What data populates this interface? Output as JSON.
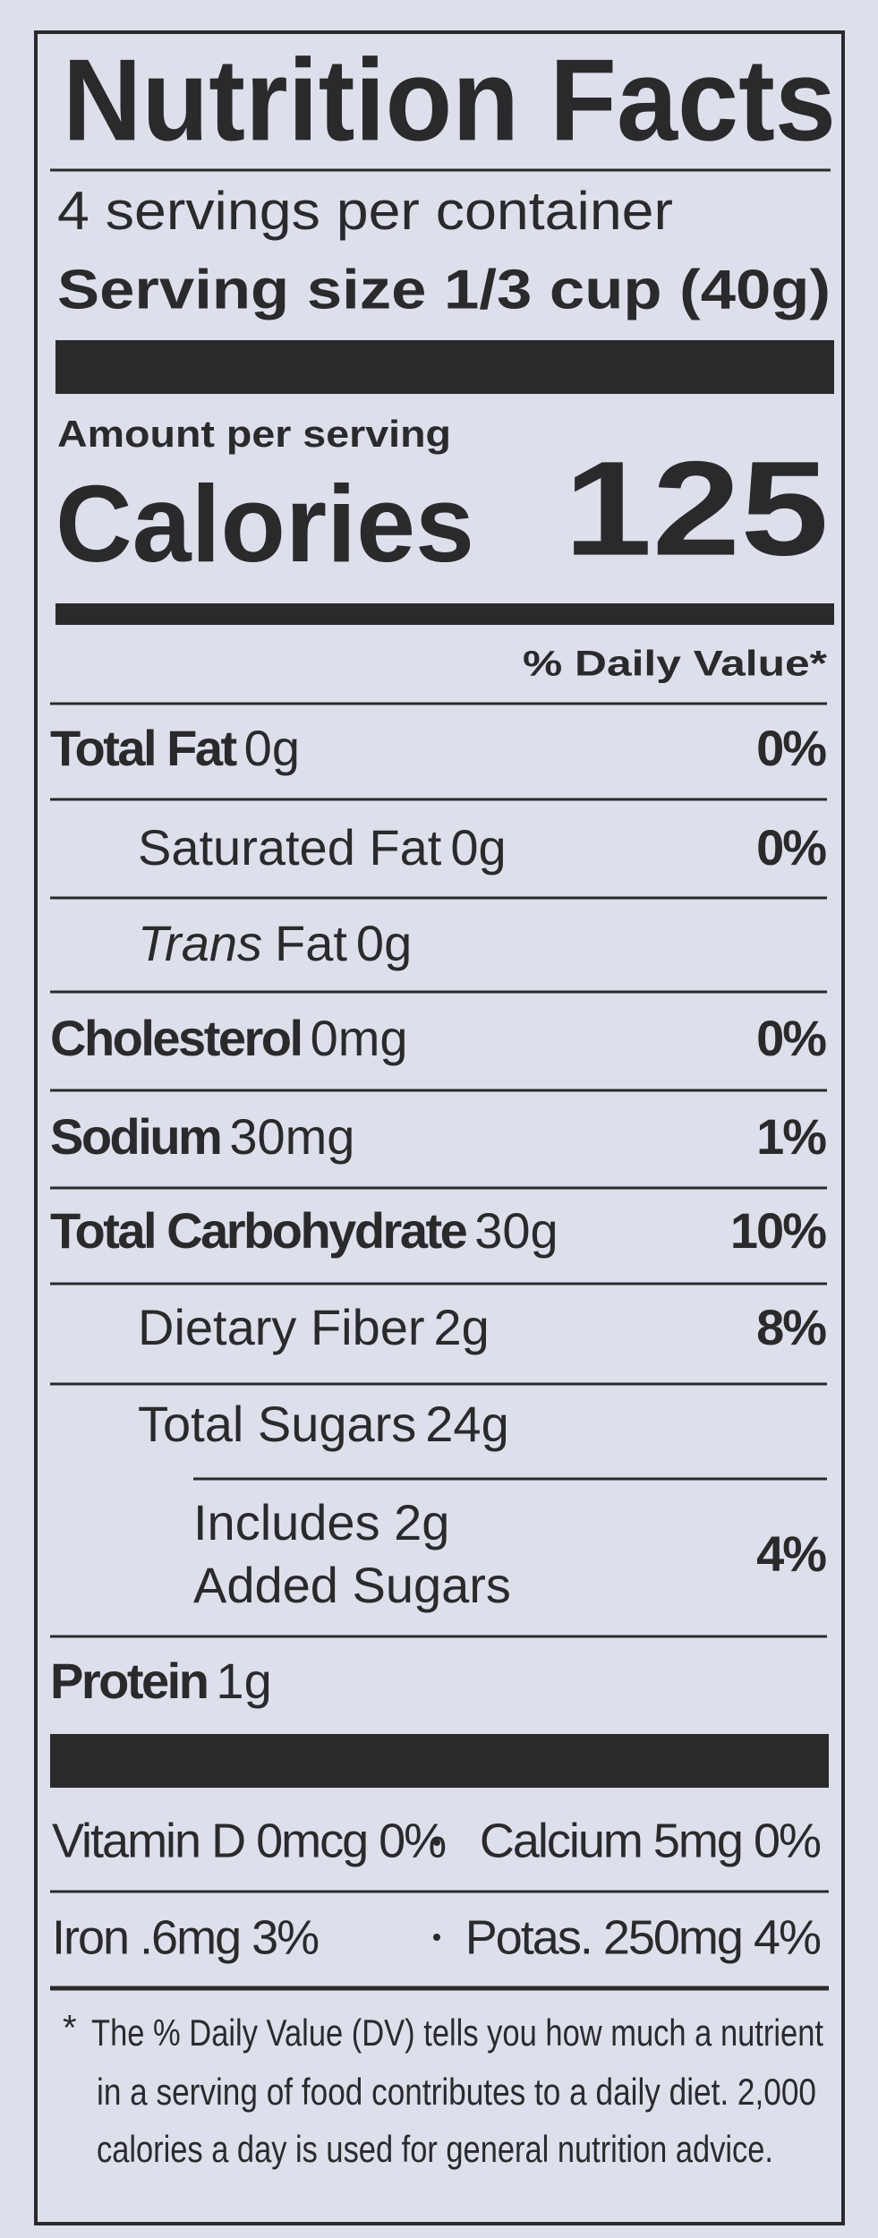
{
  "header": {
    "title": "Nutrition Facts",
    "servings": "4 servings per container",
    "serving_size": "Serving size 1/3 cup (40g)"
  },
  "calories": {
    "amount_label": "Amount per serving",
    "label": "Calories",
    "value": 125
  },
  "dv_header": "% Daily Value*",
  "nutrients": [
    {
      "name": "Total Fat",
      "amount": "0g",
      "dv": "0%"
    },
    {
      "name": "Saturated Fat",
      "amount": "0g",
      "dv": "0%"
    },
    {
      "name_italic": "Trans",
      "name": "Fat",
      "amount": "0g"
    },
    {
      "name": "Cholesterol",
      "amount": "0mg",
      "dv": "0%"
    },
    {
      "name": "Sodium",
      "amount": "30mg",
      "dv": "1%"
    },
    {
      "name": "Total Carbohydrate",
      "amount": "30g",
      "dv": "10%"
    },
    {
      "name": "Dietary Fiber",
      "amount": "2g",
      "dv": "8%"
    },
    {
      "name": "Total Sugars",
      "amount": "24g"
    },
    {
      "lines": [
        "Includes 2g",
        "Added Sugars"
      ],
      "dv": "4%"
    },
    {
      "name": "Protein",
      "amount": "1g"
    }
  ],
  "vitamins": [
    [
      "Vitamin D 0mcg 0%",
      "Calcium 5mg 0%"
    ],
    [
      "Iron .6mg 3%",
      "Potas. 250mg 4%"
    ]
  ],
  "footnote": {
    "mark": "*",
    "lines": [
      "The % Daily Value (DV) tells you how much a nutrient",
      "in a serving of food contributes to a daily diet. 2,000",
      "calories a day is used for general nutrition advice."
    ]
  }
}
